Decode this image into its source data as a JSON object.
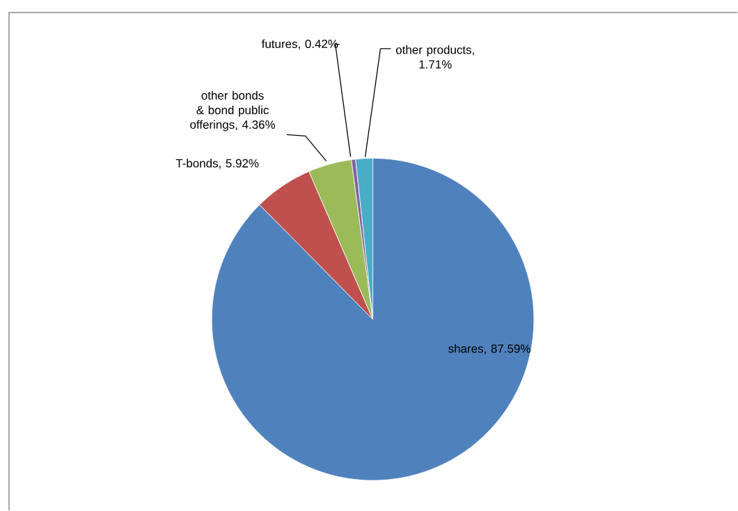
{
  "chart_data": {
    "type": "pie",
    "categories": [
      "shares",
      "T-bonds",
      "other bonds & bond public offerings",
      "futures",
      "other products"
    ],
    "values": [
      87.59,
      5.92,
      4.36,
      0.42,
      1.71
    ],
    "colors": [
      "#4f81bd",
      "#c0504d",
      "#9bbb59",
      "#8064a2",
      "#4bacc6"
    ],
    "value_labels": [
      ", 87.59%",
      ", 5.92%",
      ", 4.36%",
      ", 0.42%",
      ", 1.71%"
    ]
  }
}
